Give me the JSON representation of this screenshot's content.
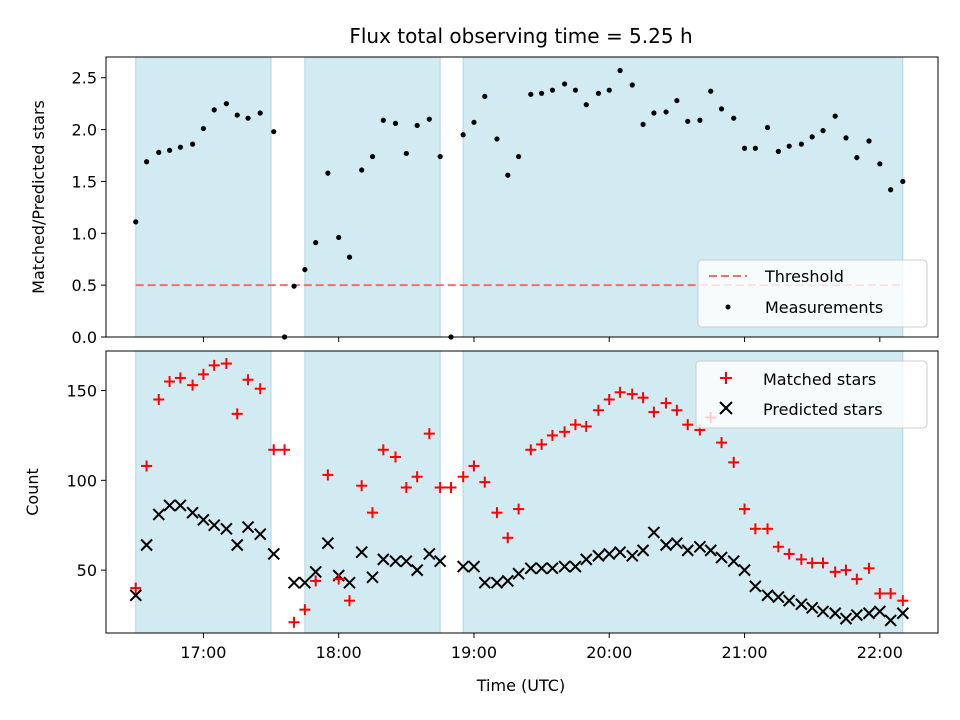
{
  "chart_data": {
    "title": "Flux total observing time = 5.25 h",
    "xlabel": "Time (UTC)",
    "x_unit": "hours UTC",
    "x_range": [
      16.28,
      22.43
    ],
    "x_ticks": [
      {
        "value": 17,
        "label": "17:00"
      },
      {
        "value": 18,
        "label": "18:00"
      },
      {
        "value": 19,
        "label": "19:00"
      },
      {
        "value": 20,
        "label": "20:00"
      },
      {
        "value": 21,
        "label": "21:00"
      },
      {
        "value": 22,
        "label": "22:00"
      }
    ],
    "observing_windows": [
      [
        16.5,
        17.5
      ],
      [
        17.75,
        18.75
      ],
      [
        18.92,
        22.17
      ]
    ],
    "window_color": "#add8e6",
    "panels": [
      {
        "type": "scatter",
        "ylabel": "Matched/Predicted stars",
        "ylim": [
          0,
          2.7
        ],
        "y_ticks": [
          "0.0",
          "0.5",
          "1.0",
          "1.5",
          "2.0",
          "2.5"
        ],
        "threshold": {
          "name": "Threshold",
          "value": 0.5,
          "x_range": [
            16.5,
            22.17
          ],
          "color": "#f07070"
        },
        "series": [
          {
            "name": "Measurements",
            "color": "#000000",
            "marker": "dot",
            "x": [
              16.5,
              16.58,
              16.67,
              16.75,
              16.83,
              16.92,
              17.0,
              17.08,
              17.17,
              17.25,
              17.33,
              17.42,
              17.52,
              17.6,
              17.67,
              17.75,
              17.83,
              17.92,
              18.0,
              18.08,
              18.17,
              18.25,
              18.33,
              18.42,
              18.5,
              18.58,
              18.67,
              18.75,
              18.83,
              18.92,
              19.0,
              19.08,
              19.17,
              19.25,
              19.33,
              19.42,
              19.5,
              19.58,
              19.67,
              19.75,
              19.83,
              19.92,
              20.0,
              20.08,
              20.17,
              20.25,
              20.33,
              20.42,
              20.5,
              20.58,
              20.67,
              20.75,
              20.83,
              20.92,
              21.0,
              21.08,
              21.17,
              21.25,
              21.33,
              21.42,
              21.5,
              21.58,
              21.67,
              21.75,
              21.83,
              21.92,
              22.0,
              22.08,
              22.17
            ],
            "y": [
              1.11,
              1.69,
              1.78,
              1.8,
              1.83,
              1.86,
              2.01,
              2.19,
              2.25,
              2.14,
              2.11,
              2.16,
              1.98,
              0.0,
              0.49,
              0.65,
              0.91,
              1.58,
              0.96,
              0.77,
              1.61,
              1.74,
              2.09,
              2.06,
              1.77,
              2.04,
              2.1,
              1.74,
              0.0,
              1.95,
              2.07,
              2.32,
              1.91,
              1.56,
              1.74,
              2.34,
              2.35,
              2.38,
              2.44,
              2.38,
              2.24,
              2.35,
              2.38,
              2.57,
              2.43,
              2.05,
              2.16,
              2.17,
              2.28,
              2.08,
              2.09,
              2.37,
              2.2,
              2.11,
              1.82,
              1.82,
              2.02,
              1.79,
              1.84,
              1.86,
              1.93,
              1.99,
              2.13,
              1.92,
              1.73,
              1.89,
              1.67,
              1.42,
              1.5
            ]
          }
        ],
        "legend": {
          "position": "lower-right",
          "entries": [
            "Threshold",
            "Measurements"
          ]
        }
      },
      {
        "type": "scatter",
        "ylabel": "Count",
        "ylim": [
          15,
          172
        ],
        "y_ticks": [
          "50",
          "100",
          "150"
        ],
        "series": [
          {
            "name": "Matched stars",
            "color": "#ff0000",
            "marker": "plus",
            "x": [
              16.5,
              16.58,
              16.67,
              16.75,
              16.83,
              16.92,
              17.0,
              17.08,
              17.17,
              17.25,
              17.33,
              17.42,
              17.52,
              17.6,
              17.67,
              17.75,
              17.83,
              17.92,
              18.0,
              18.08,
              18.17,
              18.25,
              18.33,
              18.42,
              18.5,
              18.58,
              18.67,
              18.75,
              18.83,
              18.92,
              19.0,
              19.08,
              19.17,
              19.25,
              19.33,
              19.42,
              19.5,
              19.58,
              19.67,
              19.75,
              19.83,
              19.92,
              20.0,
              20.08,
              20.17,
              20.25,
              20.33,
              20.42,
              20.5,
              20.58,
              20.67,
              20.75,
              20.83,
              20.92,
              21.0,
              21.08,
              21.17,
              21.25,
              21.33,
              21.42,
              21.5,
              21.58,
              21.67,
              21.75,
              21.83,
              21.92,
              22.0,
              22.08,
              22.17
            ],
            "y": [
              40,
              108,
              145,
              155,
              157,
              153,
              159,
              164,
              165,
              137,
              156,
              151,
              117,
              117,
              21,
              28,
              44,
              103,
              45,
              33,
              97,
              82,
              117,
              113,
              96,
              102,
              126,
              96,
              96,
              102,
              108,
              99,
              82,
              68,
              84,
              117,
              120,
              125,
              127,
              131,
              130,
              139,
              145,
              149,
              148,
              146,
              138,
              143,
              139,
              131,
              128,
              135,
              121,
              110,
              84,
              73,
              73,
              63,
              59,
              56,
              54,
              54,
              49,
              50,
              45,
              51,
              37,
              37,
              33
            ],
            "values": [
              40,
              108,
              145,
              155,
              157,
              153,
              159,
              164,
              165,
              137,
              156,
              151,
              117,
              117,
              21,
              28,
              44,
              103,
              45,
              33,
              97,
              82,
              117,
              113,
              96,
              102,
              126,
              96,
              96,
              102,
              108,
              99,
              82,
              68,
              84,
              117,
              120,
              125,
              127,
              131,
              130,
              139,
              145,
              149,
              148,
              146,
              138,
              143,
              139,
              131,
              128,
              135,
              121,
              110,
              84,
              73,
              73,
              63,
              59,
              56,
              54,
              54,
              49,
              50,
              45,
              51,
              37,
              37,
              33
            ]
          },
          {
            "name": "Predicted stars",
            "color": "#000000",
            "marker": "x",
            "x": [
              16.5,
              16.58,
              16.67,
              16.75,
              16.83,
              16.92,
              17.0,
              17.08,
              17.17,
              17.25,
              17.33,
              17.42,
              17.52,
              17.67,
              17.75,
              17.83,
              17.92,
              18.0,
              18.08,
              18.17,
              18.25,
              18.33,
              18.42,
              18.5,
              18.58,
              18.67,
              18.75,
              18.92,
              19.0,
              19.08,
              19.17,
              19.25,
              19.33,
              19.42,
              19.5,
              19.58,
              19.67,
              19.75,
              19.83,
              19.92,
              20.0,
              20.08,
              20.17,
              20.25,
              20.33,
              20.42,
              20.5,
              20.58,
              20.67,
              20.75,
              20.83,
              20.92,
              21.0,
              21.08,
              21.17,
              21.25,
              21.33,
              21.42,
              21.5,
              21.58,
              21.67,
              21.75,
              21.83,
              21.92,
              22.0,
              22.08,
              22.17
            ],
            "y": [
              36,
              64,
              81,
              86,
              86,
              82,
              78,
              75,
              73,
              64,
              74,
              70,
              59,
              43,
              43,
              49,
              65,
              47,
              43,
              60,
              46,
              56,
              55,
              55,
              50,
              59,
              55,
              52,
              52,
              43,
              43,
              44,
              48,
              51,
              51,
              51,
              52,
              52,
              56,
              58,
              59,
              60,
              58,
              61,
              71,
              64,
              65,
              61,
              63,
              61,
              57,
              55,
              50,
              41,
              36,
              35,
              33,
              31,
              29,
              27,
              26,
              23,
              25,
              26,
              27,
              22,
              26
            ]
          }
        ],
        "legend": {
          "position": "upper-right",
          "entries": [
            "Matched stars",
            "Predicted stars"
          ]
        }
      }
    ]
  }
}
